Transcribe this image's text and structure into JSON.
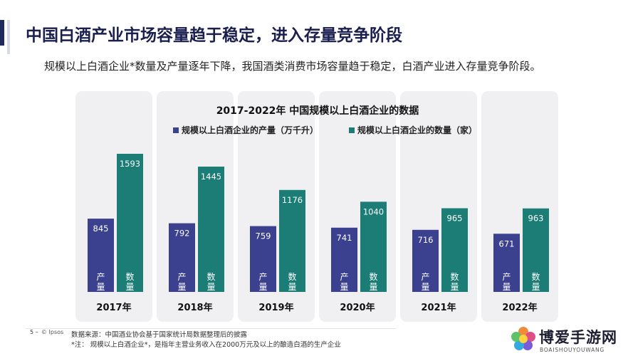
{
  "slide": {
    "title": "中国白酒产业市场容量趋于稳定，进入存量竞争阶段",
    "subtitle": "规模以上白酒企业*数量及产量逐年下降，我国酒类消费市场容量趋于稳定，白酒产业进入存量竞争阶段。"
  },
  "footer": {
    "page_number": "5 –",
    "brand": "© Ipsos",
    "source": "数据来源：中国酒业协会基于国家统计局数据整理后的披露",
    "note": "*注： 规模以上白酒企业*，是指年主营业务收入在2000万元及以上的酿造白酒的生产企业"
  },
  "watermark": {
    "title": "博爱手游网",
    "subtitle": "BOAISHOUYOUWANG"
  },
  "colors": {
    "production": "#3b418f",
    "count": "#1b7d76",
    "panel": "#f0f0f3",
    "title": "#1b1f4f",
    "accent": "#1f2a5c"
  },
  "chart_data": {
    "type": "bar",
    "title": "2017-2022年 中国规模以上白酒企业的数据",
    "categories": [
      "2017年",
      "2018年",
      "2019年",
      "2020年",
      "2021年",
      "2022年"
    ],
    "series": [
      {
        "name": "规模以上白酒企业的产量（万千升）",
        "bar_label": "产量",
        "values": [
          845,
          792,
          759,
          741,
          716,
          671
        ]
      },
      {
        "name": "规模以上白酒企业的数量（家）",
        "bar_label": "数量",
        "values": [
          1593,
          1445,
          1176,
          1040,
          965,
          963
        ]
      }
    ],
    "legend": "top",
    "grid": false
  }
}
